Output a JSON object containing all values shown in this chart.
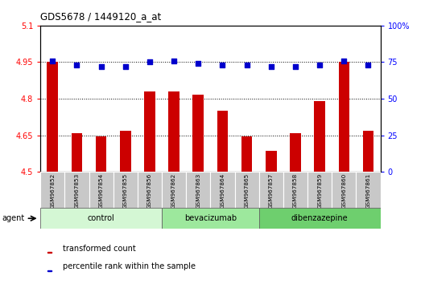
{
  "title": "GDS5678 / 1449120_a_at",
  "samples": [
    "GSM967852",
    "GSM967853",
    "GSM967854",
    "GSM967855",
    "GSM967856",
    "GSM967862",
    "GSM967863",
    "GSM967864",
    "GSM967865",
    "GSM967857",
    "GSM967858",
    "GSM967859",
    "GSM967860",
    "GSM967861"
  ],
  "bar_values": [
    4.95,
    4.66,
    4.645,
    4.67,
    4.83,
    4.83,
    4.815,
    4.75,
    4.645,
    4.585,
    4.66,
    4.79,
    4.95,
    4.67
  ],
  "dot_values": [
    76,
    73,
    72,
    72,
    75,
    76,
    74,
    73,
    73,
    72,
    72,
    73,
    76,
    73
  ],
  "bar_color": "#cc0000",
  "dot_color": "#0000cc",
  "ylim_left": [
    4.5,
    5.1
  ],
  "ylim_right": [
    0,
    100
  ],
  "yticks_left": [
    4.5,
    4.65,
    4.8,
    4.95,
    5.1
  ],
  "yticks_right": [
    0,
    25,
    50,
    75,
    100
  ],
  "ytick_labels_left": [
    "4.5",
    "4.65",
    "4.8",
    "4.95",
    "5.1"
  ],
  "ytick_labels_right": [
    "0",
    "25",
    "50",
    "75",
    "100%"
  ],
  "hlines": [
    4.65,
    4.8,
    4.95
  ],
  "groups": [
    {
      "label": "control",
      "start": 0,
      "end": 4,
      "color": "#d4f7d4"
    },
    {
      "label": "bevacizumab",
      "start": 5,
      "end": 8,
      "color": "#9de89d"
    },
    {
      "label": "dibenzazepine",
      "start": 9,
      "end": 13,
      "color": "#6ecf6e"
    }
  ],
  "agent_label": "agent",
  "legend_items": [
    {
      "label": "transformed count",
      "color": "#cc0000"
    },
    {
      "label": "percentile rank within the sample",
      "color": "#0000cc"
    }
  ],
  "bg_color": "#ffffff",
  "plot_bg_color": "#ffffff",
  "tick_area_bg": "#c8c8c8"
}
